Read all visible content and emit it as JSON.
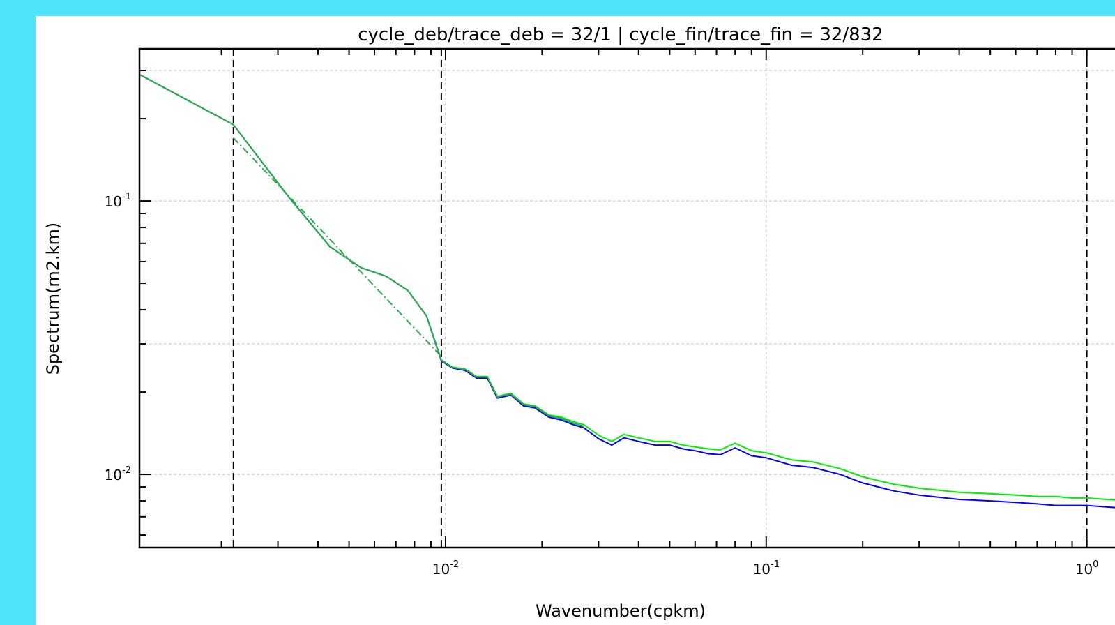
{
  "page": {
    "background": "#4fe3fc",
    "panel_background": "#ffffff"
  },
  "chart_data": {
    "type": "line",
    "title": "cycle_deb/trace_deb = 32/1 | cycle_fin/trace_fin = 32/832",
    "xlabel": "Wavenumber(cpkm)",
    "ylabel": "Spectrum(m2.km)",
    "xscale": "log",
    "yscale": "log",
    "xlim": [
      0.00111,
      1.36
    ],
    "ylim": [
      0.0054,
      0.36
    ],
    "grid": true,
    "x_ticks": [
      {
        "value": 0.01,
        "base": "10",
        "exp": "-2"
      },
      {
        "value": 0.1,
        "base": "10",
        "exp": "-1"
      },
      {
        "value": 1,
        "base": "10",
        "exp": "0"
      }
    ],
    "y_ticks": [
      {
        "value": 0.1,
        "base": "10",
        "exp": "-1"
      },
      {
        "value": 0.01,
        "base": "10",
        "exp": "-2"
      }
    ],
    "vertical_lines": [
      0.00218,
      0.0097,
      1.0,
      1.34
    ],
    "series": [
      {
        "color": "#0000ff",
        "style": "solid",
        "x": [
          0.00111,
          0.00218,
          0.00327,
          0.00436,
          0.00545,
          0.00654,
          0.00763,
          0.00872,
          0.0097,
          0.0105,
          0.0115,
          0.0125,
          0.0135,
          0.0145,
          0.016,
          0.0175,
          0.019,
          0.021,
          0.023,
          0.025,
          0.027,
          0.03,
          0.033,
          0.036,
          0.04,
          0.045,
          0.05,
          0.055,
          0.06,
          0.066,
          0.072,
          0.08,
          0.09,
          0.1,
          0.12,
          0.14,
          0.17,
          0.2,
          0.25,
          0.3,
          0.4,
          0.5,
          0.6,
          0.7,
          0.8,
          0.9,
          1.0,
          1.15,
          1.36
        ],
        "values": [
          0.29,
          0.19,
          0.102,
          0.068,
          0.057,
          0.053,
          0.047,
          0.038,
          0.026,
          0.0245,
          0.024,
          0.0225,
          0.0225,
          0.019,
          0.0195,
          0.0178,
          0.0175,
          0.0162,
          0.0158,
          0.0152,
          0.0148,
          0.0135,
          0.0128,
          0.0136,
          0.0132,
          0.0128,
          0.0128,
          0.0124,
          0.0122,
          0.0119,
          0.0118,
          0.0125,
          0.0117,
          0.0115,
          0.0108,
          0.0106,
          0.01,
          0.0093,
          0.0087,
          0.0084,
          0.0081,
          0.008,
          0.0079,
          0.0078,
          0.0077,
          0.0077,
          0.0077,
          0.0076,
          0.0075
        ]
      },
      {
        "color": "#00ee00",
        "style": "solid",
        "x": [
          0.00111,
          0.00218,
          0.00327,
          0.00436,
          0.00545,
          0.00654,
          0.00763,
          0.00872,
          0.0097,
          0.0105,
          0.0115,
          0.0125,
          0.0135,
          0.0145,
          0.016,
          0.0175,
          0.019,
          0.021,
          0.023,
          0.025,
          0.027,
          0.03,
          0.033,
          0.036,
          0.04,
          0.045,
          0.05,
          0.055,
          0.06,
          0.066,
          0.072,
          0.08,
          0.09,
          0.1,
          0.12,
          0.14,
          0.17,
          0.2,
          0.25,
          0.3,
          0.4,
          0.5,
          0.6,
          0.7,
          0.8,
          0.9,
          1.0,
          1.15,
          1.36
        ],
        "values": [
          0.29,
          0.19,
          0.102,
          0.068,
          0.057,
          0.053,
          0.047,
          0.038,
          0.0262,
          0.0247,
          0.0243,
          0.0228,
          0.0228,
          0.0193,
          0.0198,
          0.0181,
          0.0178,
          0.0165,
          0.0162,
          0.0156,
          0.0152,
          0.0139,
          0.0132,
          0.014,
          0.0136,
          0.0132,
          0.0132,
          0.0128,
          0.0126,
          0.0124,
          0.0123,
          0.013,
          0.0122,
          0.012,
          0.0113,
          0.0111,
          0.0105,
          0.0098,
          0.0092,
          0.0089,
          0.0086,
          0.0085,
          0.0084,
          0.0083,
          0.0083,
          0.0082,
          0.0082,
          0.0081,
          0.008
        ]
      },
      {
        "color": "#2ca84e",
        "style": "solid",
        "x": [
          0.00111,
          0.00218,
          0.00327,
          0.00436,
          0.00545,
          0.00654,
          0.00763,
          0.00872,
          0.0097,
          0.0105,
          0.0115,
          0.0125,
          0.0135,
          0.0145,
          0.016,
          0.0175,
          0.019,
          0.021,
          0.023,
          0.025,
          0.027
        ],
        "values": [
          0.29,
          0.19,
          0.102,
          0.068,
          0.057,
          0.053,
          0.047,
          0.038,
          0.0262,
          0.0246,
          0.0242,
          0.0227,
          0.0227,
          0.0192,
          0.0197,
          0.018,
          0.0177,
          0.0164,
          0.016,
          0.0154,
          0.015
        ]
      },
      {
        "color": "#2ca84e",
        "style": "dashdot",
        "x": [
          0.00218,
          0.0097
        ],
        "values": [
          0.17,
          0.027
        ]
      }
    ]
  }
}
